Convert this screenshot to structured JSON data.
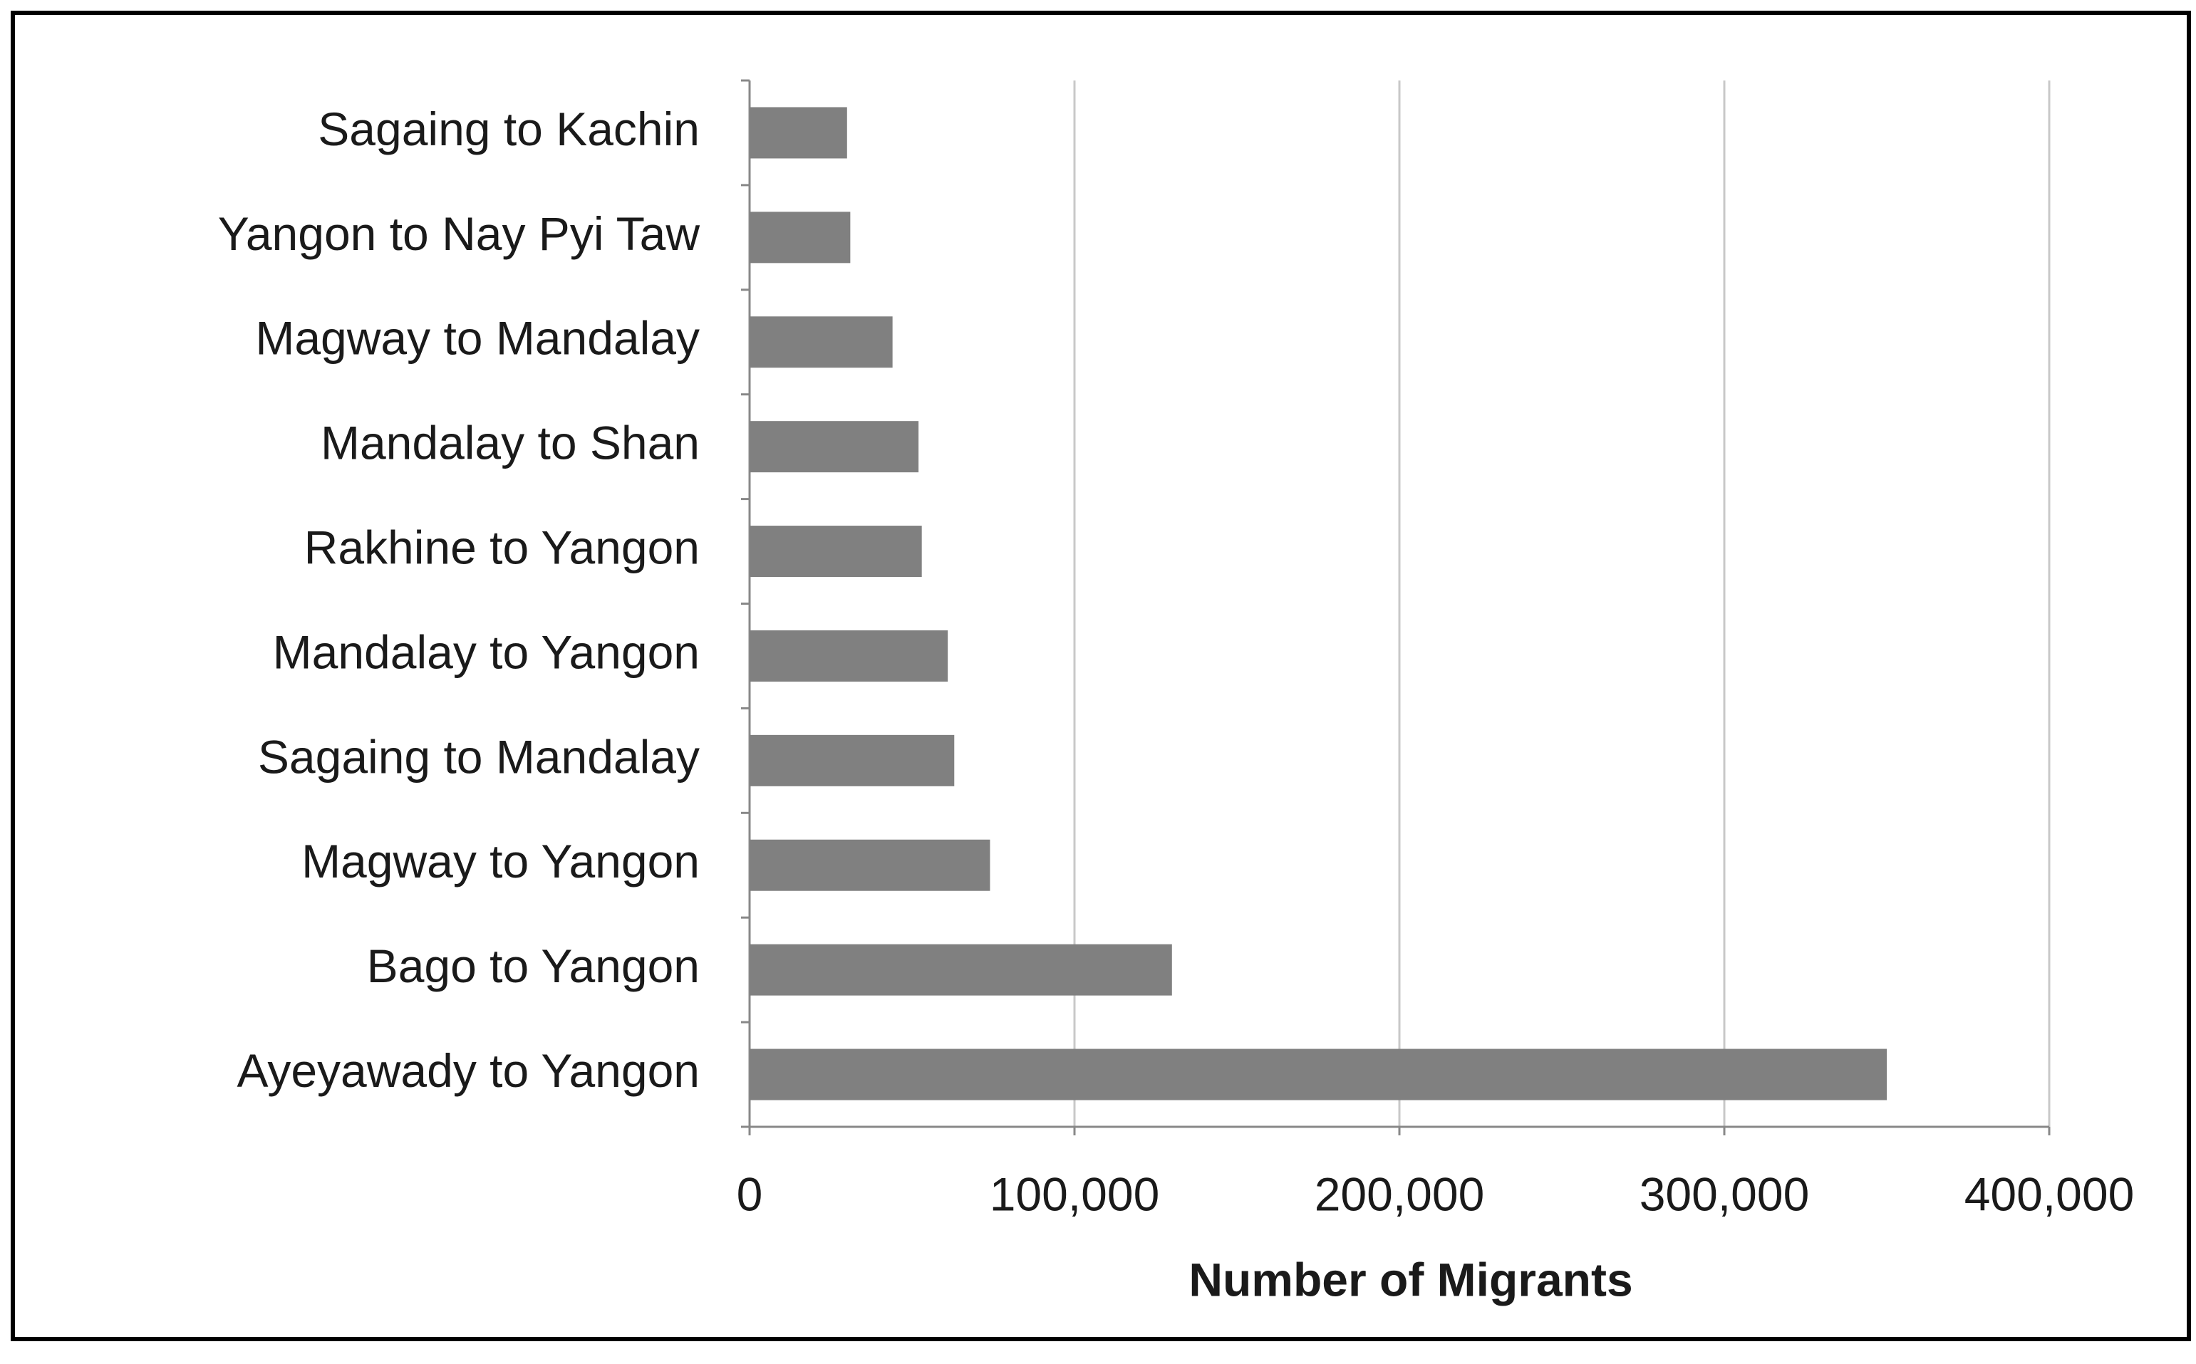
{
  "chart_data": {
    "type": "bar",
    "orientation": "horizontal",
    "x_label": "Number of Migrants",
    "categories": [
      "Sagaing to Kachin",
      "Yangon to Nay Pyi Taw",
      "Magway to Mandalay",
      "Mandalay to Shan",
      "Rakhine to Yangon",
      "Mandalay to Yangon",
      "Sagaing to Mandalay",
      "Magway to Yangon",
      "Bago to Yangon",
      "Ayeyawady to Yangon"
    ],
    "values": [
      30000,
      31000,
      44000,
      52000,
      53000,
      61000,
      63000,
      74000,
      130000,
      350000
    ],
    "color": "#808080",
    "xlim": [
      0,
      400000
    ],
    "xticks": [
      0,
      {
        "value": 100000,
        "label": "100,000"
      },
      {
        "value": 200000,
        "label": "200,000"
      },
      {
        "value": 300000,
        "label": "300,000"
      },
      {
        "value": 400000,
        "label": "400,000"
      }
    ],
    "grid": true
  }
}
